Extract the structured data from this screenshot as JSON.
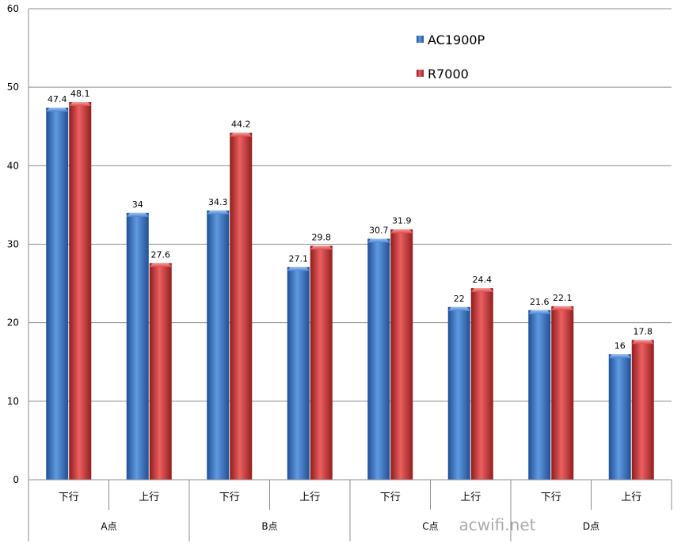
{
  "chart_data": {
    "type": "bar",
    "title": "",
    "xlabel": "",
    "ylabel": "",
    "ylim": [
      0,
      60
    ],
    "yticks": [
      0,
      10,
      20,
      30,
      40,
      50,
      60
    ],
    "grid": true,
    "legend_position": "top-right",
    "groups": [
      "A点",
      "B点",
      "C点",
      "D点"
    ],
    "categories": [
      "下行",
      "上行",
      "下行",
      "上行",
      "下行",
      "上行",
      "下行",
      "上行"
    ],
    "series": [
      {
        "name": "AC1900P",
        "color": "#3a76c9",
        "values": [
          47.4,
          34,
          34.3,
          27.1,
          30.7,
          22,
          21.6,
          16
        ]
      },
      {
        "name": "R7000",
        "color": "#d23c3c",
        "values": [
          48.1,
          27.6,
          44.2,
          29.8,
          31.9,
          24.4,
          22.1,
          17.8
        ]
      }
    ]
  },
  "watermark": "acwifi.net"
}
